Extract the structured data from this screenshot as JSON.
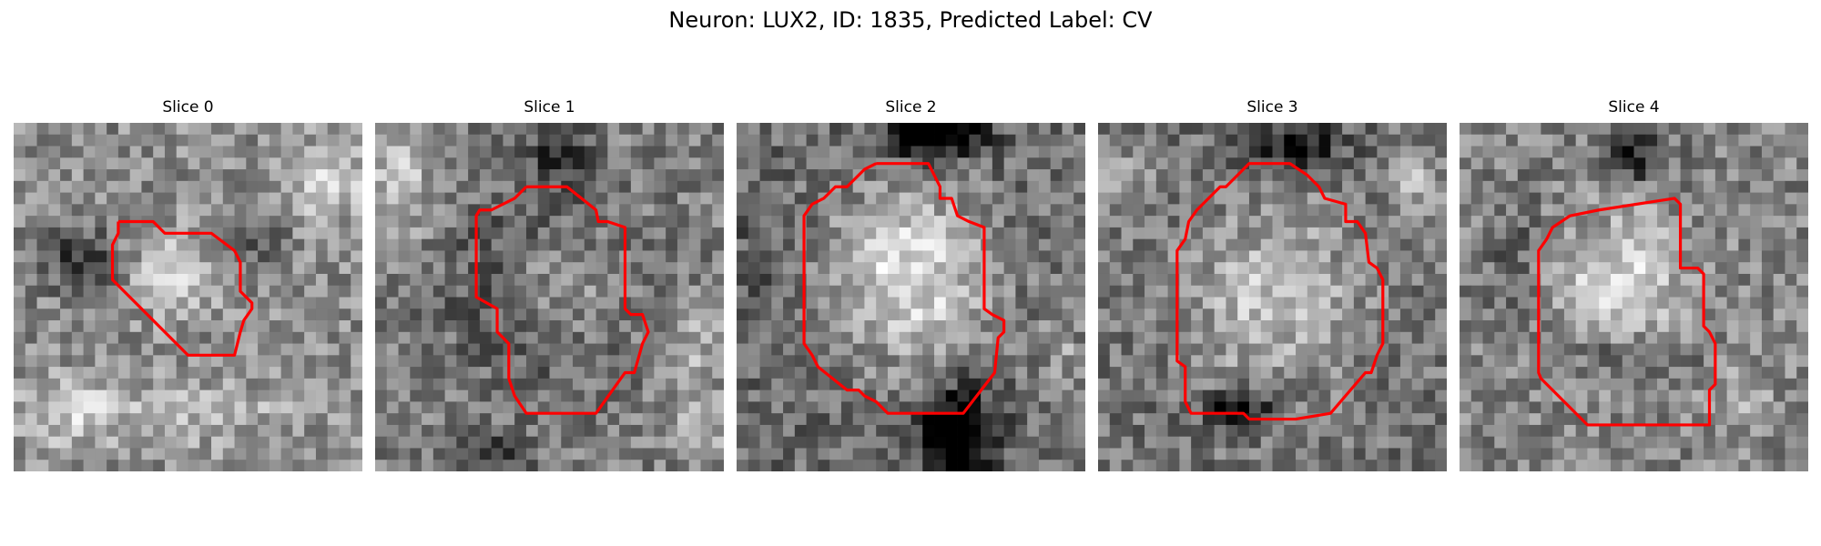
{
  "figure": {
    "suptitle": "Neuron: LUX2, ID: 1835, Predicted Label: CV",
    "outline_color": "#ff0000",
    "colormap": "gray",
    "slices": [
      {
        "title": "Slice 0"
      },
      {
        "title": "Slice 1"
      },
      {
        "title": "Slice 2"
      },
      {
        "title": "Slice 3"
      },
      {
        "title": "Slice 4"
      }
    ]
  }
}
